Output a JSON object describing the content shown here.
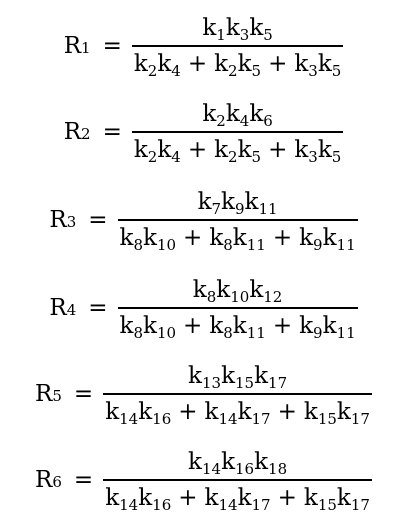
{
  "equations": [
    {
      "lhs": {
        "symbol": "R",
        "sub": "1"
      },
      "eq": "=",
      "numerator": [
        [
          {
            "k": "k",
            "s": "1"
          },
          {
            "k": "k",
            "s": "3"
          },
          {
            "k": "k",
            "s": "5"
          }
        ]
      ],
      "denominator": [
        [
          {
            "k": "k",
            "s": "2"
          },
          {
            "k": "k",
            "s": "4"
          }
        ],
        [
          {
            "k": "k",
            "s": "2"
          },
          {
            "k": "k",
            "s": "5"
          }
        ],
        [
          {
            "k": "k",
            "s": "3"
          },
          {
            "k": "k",
            "s": "5"
          }
        ]
      ]
    },
    {
      "lhs": {
        "symbol": "R",
        "sub": "2"
      },
      "eq": "=",
      "numerator": [
        [
          {
            "k": "k",
            "s": "2"
          },
          {
            "k": "k",
            "s": "4"
          },
          {
            "k": "k",
            "s": "6"
          }
        ]
      ],
      "denominator": [
        [
          {
            "k": "k",
            "s": "2"
          },
          {
            "k": "k",
            "s": "4"
          }
        ],
        [
          {
            "k": "k",
            "s": "2"
          },
          {
            "k": "k",
            "s": "5"
          }
        ],
        [
          {
            "k": "k",
            "s": "3"
          },
          {
            "k": "k",
            "s": "5"
          }
        ]
      ]
    },
    {
      "lhs": {
        "symbol": "R",
        "sub": "3"
      },
      "eq": "=",
      "numerator": [
        [
          {
            "k": "k",
            "s": "7"
          },
          {
            "k": "k",
            "s": "9"
          },
          {
            "k": "k",
            "s": "11"
          }
        ]
      ],
      "denominator": [
        [
          {
            "k": "k",
            "s": "8"
          },
          {
            "k": "k",
            "s": "10"
          }
        ],
        [
          {
            "k": "k",
            "s": "8"
          },
          {
            "k": "k",
            "s": "11"
          }
        ],
        [
          {
            "k": "k",
            "s": "9"
          },
          {
            "k": "k",
            "s": "11"
          }
        ]
      ]
    },
    {
      "lhs": {
        "symbol": "R",
        "sub": "4"
      },
      "eq": "=",
      "numerator": [
        [
          {
            "k": "k",
            "s": "8"
          },
          {
            "k": "k",
            "s": "10"
          },
          {
            "k": "k",
            "s": "12"
          }
        ]
      ],
      "denominator": [
        [
          {
            "k": "k",
            "s": "8"
          },
          {
            "k": "k",
            "s": "10"
          }
        ],
        [
          {
            "k": "k",
            "s": "8"
          },
          {
            "k": "k",
            "s": "11"
          }
        ],
        [
          {
            "k": "k",
            "s": "9"
          },
          {
            "k": "k",
            "s": "11"
          }
        ]
      ]
    },
    {
      "lhs": {
        "symbol": "R",
        "sub": "5"
      },
      "eq": "=",
      "numerator": [
        [
          {
            "k": "k",
            "s": "13"
          },
          {
            "k": "k",
            "s": "15"
          },
          {
            "k": "k",
            "s": "17"
          }
        ]
      ],
      "denominator": [
        [
          {
            "k": "k",
            "s": "14"
          },
          {
            "k": "k",
            "s": "16"
          }
        ],
        [
          {
            "k": "k",
            "s": "14"
          },
          {
            "k": "k",
            "s": "17"
          }
        ],
        [
          {
            "k": "k",
            "s": "15"
          },
          {
            "k": "k",
            "s": "17"
          }
        ]
      ]
    },
    {
      "lhs": {
        "symbol": "R",
        "sub": "6"
      },
      "eq": "=",
      "numerator": [
        [
          {
            "k": "k",
            "s": "14"
          },
          {
            "k": "k",
            "s": "16"
          },
          {
            "k": "k",
            "s": "18"
          }
        ]
      ],
      "denominator": [
        [
          {
            "k": "k",
            "s": "14"
          },
          {
            "k": "k",
            "s": "16"
          }
        ],
        [
          {
            "k": "k",
            "s": "14"
          },
          {
            "k": "k",
            "s": "17"
          }
        ],
        [
          {
            "k": "k",
            "s": "15"
          },
          {
            "k": "k",
            "s": "17"
          }
        ]
      ]
    }
  ],
  "plus": "+"
}
